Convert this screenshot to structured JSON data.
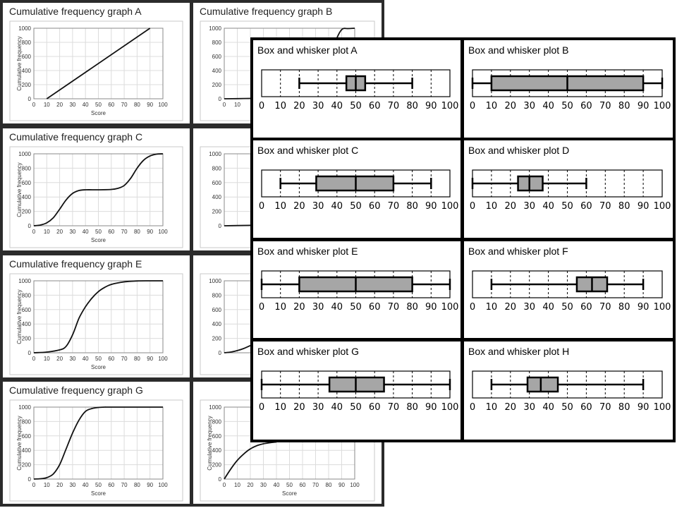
{
  "chart_data": [
    {
      "id": "cf-a",
      "type": "line",
      "title": "Cumulative frequency graph A",
      "xlabel": "Score",
      "ylabel": "Cumulative frequency",
      "xlim": [
        0,
        100
      ],
      "ylim": [
        0,
        1000
      ],
      "x_ticks": [
        0,
        10,
        20,
        30,
        40,
        50,
        60,
        70,
        80,
        90,
        100
      ],
      "y_ticks": [
        0,
        200,
        400,
        600,
        800,
        1000
      ],
      "grid": true,
      "x": [
        10,
        90
      ],
      "y": [
        0,
        1000
      ]
    },
    {
      "id": "cf-b",
      "type": "line",
      "title": "Cumulative frequency graph B",
      "xlabel": "",
      "ylabel": "",
      "xlim": [
        0,
        100
      ],
      "ylim": [
        0,
        1000
      ],
      "x_ticks": [
        0,
        10
      ],
      "y_ticks": [
        0,
        200,
        400,
        600,
        800,
        1000
      ],
      "grid": true,
      "x": [
        0,
        10,
        20,
        30,
        40,
        50,
        60,
        70,
        80,
        85,
        90,
        95,
        100
      ],
      "y": [
        0,
        2,
        5,
        10,
        20,
        40,
        90,
        200,
        500,
        800,
        980,
        995,
        1000
      ]
    },
    {
      "id": "cf-c",
      "type": "line",
      "title": "Cumulative frequency graph C",
      "xlabel": "Score",
      "ylabel": "Cumulative frequency",
      "xlim": [
        0,
        100
      ],
      "ylim": [
        0,
        1000
      ],
      "x_ticks": [
        0,
        10,
        20,
        30,
        40,
        50,
        60,
        70,
        80,
        90,
        100
      ],
      "y_ticks": [
        0,
        200,
        400,
        600,
        800,
        1000
      ],
      "grid": true,
      "x": [
        0,
        5,
        10,
        15,
        20,
        25,
        30,
        35,
        40,
        50,
        60,
        65,
        70,
        75,
        80,
        85,
        90,
        95,
        100
      ],
      "y": [
        0,
        10,
        40,
        110,
        230,
        360,
        450,
        490,
        500,
        500,
        505,
        520,
        560,
        660,
        800,
        910,
        970,
        995,
        1000
      ]
    },
    {
      "id": "cf-d",
      "type": "line",
      "title": "",
      "xlabel": "",
      "ylabel": "",
      "xlim": [
        0,
        100
      ],
      "ylim": [
        0,
        1000
      ],
      "x_ticks": [],
      "y_ticks": [
        0,
        200,
        400,
        600,
        800,
        1000
      ],
      "grid": true,
      "x": [
        0,
        10,
        20,
        30,
        40,
        50
      ],
      "y": [
        0,
        3,
        6,
        10,
        15,
        20
      ]
    },
    {
      "id": "cf-e",
      "type": "line",
      "title": "Cumulative frequency graph E",
      "xlabel": "Score",
      "ylabel": "Cumulative frequency",
      "xlim": [
        0,
        100
      ],
      "ylim": [
        0,
        1000
      ],
      "x_ticks": [
        0,
        10,
        20,
        30,
        40,
        50,
        60,
        70,
        80,
        90,
        100
      ],
      "y_ticks": [
        0,
        200,
        400,
        600,
        800,
        1000
      ],
      "grid": true,
      "x": [
        0,
        10,
        20,
        25,
        30,
        35,
        40,
        45,
        50,
        55,
        60,
        70,
        80,
        90,
        100
      ],
      "y": [
        0,
        10,
        40,
        90,
        250,
        480,
        640,
        760,
        850,
        910,
        950,
        985,
        998,
        1000,
        1000
      ]
    },
    {
      "id": "cf-f",
      "type": "line",
      "title": "",
      "xlabel": "",
      "ylabel": "",
      "xlim": [
        0,
        100
      ],
      "ylim": [
        0,
        1000
      ],
      "x_ticks": [],
      "y_ticks": [
        0,
        200,
        400,
        600,
        800,
        1000
      ],
      "grid": true,
      "x": [
        0,
        5,
        10,
        15,
        20
      ],
      "y": [
        0,
        10,
        30,
        60,
        100
      ]
    },
    {
      "id": "cf-g",
      "type": "line",
      "title": "Cumulative frequency graph G",
      "xlabel": "Score",
      "ylabel": "Cumulative frequency",
      "xlim": [
        0,
        100
      ],
      "ylim": [
        0,
        1000
      ],
      "x_ticks": [
        0,
        10,
        20,
        30,
        40,
        50,
        60,
        70,
        80,
        90,
        100
      ],
      "y_ticks": [
        0,
        200,
        400,
        600,
        800,
        1000
      ],
      "grid": true,
      "x": [
        0,
        5,
        10,
        15,
        20,
        25,
        30,
        35,
        40,
        45,
        50,
        55,
        60,
        100
      ],
      "y": [
        0,
        5,
        20,
        70,
        200,
        420,
        640,
        820,
        940,
        980,
        995,
        1000,
        1000,
        1000
      ]
    },
    {
      "id": "cf-h",
      "type": "line",
      "title": "",
      "xlabel": "Score",
      "ylabel": "Cumulative frequency",
      "xlim": [
        0,
        100
      ],
      "ylim": [
        0,
        1000
      ],
      "x_ticks": [
        0,
        10,
        20,
        30,
        40,
        50,
        60,
        70,
        80,
        90,
        100
      ],
      "y_ticks": [
        0,
        200,
        400,
        600,
        800,
        1000
      ],
      "grid": true,
      "x": [
        0,
        5,
        10,
        15,
        20,
        25,
        30,
        35,
        40
      ],
      "y": [
        0,
        140,
        260,
        350,
        420,
        465,
        490,
        505,
        515
      ]
    },
    {
      "id": "bw-a",
      "type": "boxplot",
      "title": "Box and whisker plot A",
      "xlim": [
        0,
        100
      ],
      "x_ticks": [
        0,
        10,
        20,
        30,
        40,
        50,
        60,
        70,
        80,
        90,
        100
      ],
      "grid": true,
      "min": 20,
      "q1": 45,
      "median": 50,
      "q3": 55,
      "max": 80
    },
    {
      "id": "bw-b",
      "type": "boxplot",
      "title": "Box and whisker plot B",
      "xlim": [
        0,
        100
      ],
      "x_ticks": [
        0,
        10,
        20,
        30,
        40,
        50,
        60,
        70,
        80,
        90,
        100
      ],
      "grid": true,
      "min": 0,
      "q1": 10,
      "median": 50,
      "q3": 90,
      "max": 100
    },
    {
      "id": "bw-c",
      "type": "boxplot",
      "title": "Box and whisker plot C",
      "xlim": [
        0,
        100
      ],
      "x_ticks": [
        0,
        10,
        20,
        30,
        40,
        50,
        60,
        70,
        80,
        90,
        100
      ],
      "grid": true,
      "min": 10,
      "q1": 29,
      "median": 50,
      "q3": 70,
      "max": 90
    },
    {
      "id": "bw-d",
      "type": "boxplot",
      "title": "Box and whisker plot D",
      "xlim": [
        0,
        100
      ],
      "x_ticks": [
        0,
        10,
        20,
        30,
        40,
        50,
        60,
        70,
        80,
        90,
        100
      ],
      "grid": true,
      "min": 0,
      "q1": 24,
      "median": 30,
      "q3": 37,
      "max": 60
    },
    {
      "id": "bw-e",
      "type": "boxplot",
      "title": "Box and whisker plot E",
      "xlim": [
        0,
        100
      ],
      "x_ticks": [
        0,
        10,
        20,
        30,
        40,
        50,
        60,
        70,
        80,
        90,
        100
      ],
      "grid": true,
      "min": 0,
      "q1": 20,
      "median": 50,
      "q3": 80,
      "max": 100
    },
    {
      "id": "bw-f",
      "type": "boxplot",
      "title": "Box and whisker plot F",
      "xlim": [
        0,
        100
      ],
      "x_ticks": [
        0,
        10,
        20,
        30,
        40,
        50,
        60,
        70,
        80,
        90,
        100
      ],
      "grid": true,
      "min": 10,
      "q1": 55,
      "median": 63,
      "q3": 71,
      "max": 90
    },
    {
      "id": "bw-g",
      "type": "boxplot",
      "title": "Box and whisker plot G",
      "xlim": [
        0,
        100
      ],
      "x_ticks": [
        0,
        10,
        20,
        30,
        40,
        50,
        60,
        70,
        80,
        90,
        100
      ],
      "grid": true,
      "min": 0,
      "q1": 36,
      "median": 50,
      "q3": 65,
      "max": 100
    },
    {
      "id": "bw-h",
      "type": "boxplot",
      "title": "Box and whisker plot H",
      "xlim": [
        0,
        100
      ],
      "x_ticks": [
        0,
        10,
        20,
        30,
        40,
        50,
        60,
        70,
        80,
        90,
        100
      ],
      "grid": true,
      "min": 10,
      "q1": 29,
      "median": 36,
      "q3": 45,
      "max": 90
    }
  ]
}
